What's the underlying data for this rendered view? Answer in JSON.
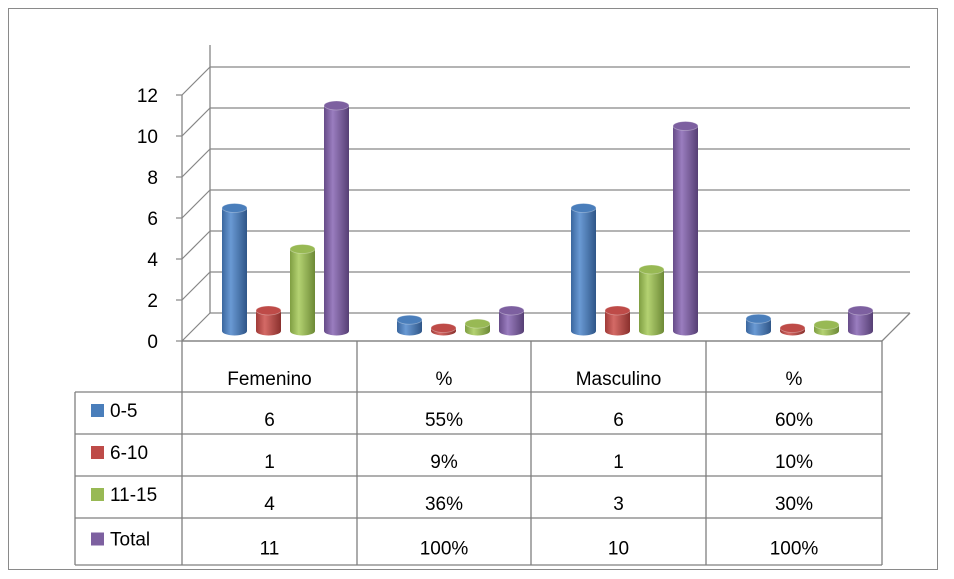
{
  "chart_data": {
    "type": "bar",
    "style": "3d-cylinder-with-data-table",
    "categories": [
      "Femenino",
      "%",
      "Masculino",
      "%"
    ],
    "series": [
      {
        "name": "0-5",
        "color": "#4a7ebb",
        "values": [
          6,
          0.55,
          6,
          0.6
        ],
        "labels": [
          "6",
          "55%",
          "6",
          "60%"
        ]
      },
      {
        "name": "6-10",
        "color": "#be4b48",
        "values": [
          1,
          0.09,
          1,
          0.1
        ],
        "labels": [
          "1",
          "9%",
          "1",
          "10%"
        ]
      },
      {
        "name": "11-15",
        "color": "#98b954",
        "values": [
          4,
          0.36,
          3,
          0.3
        ],
        "labels": [
          "4",
          "36%",
          "3",
          "30%"
        ]
      },
      {
        "name": "Total",
        "color": "#7d60a0",
        "values": [
          11,
          1.0,
          10,
          1.0
        ],
        "labels": [
          "11",
          "100%",
          "10",
          "100%"
        ]
      }
    ],
    "yticks": [
      "0",
      "2",
      "4",
      "6",
      "8",
      "10",
      "12"
    ],
    "ylim": [
      0,
      12
    ],
    "grid": true,
    "legend": "in-data-table"
  }
}
